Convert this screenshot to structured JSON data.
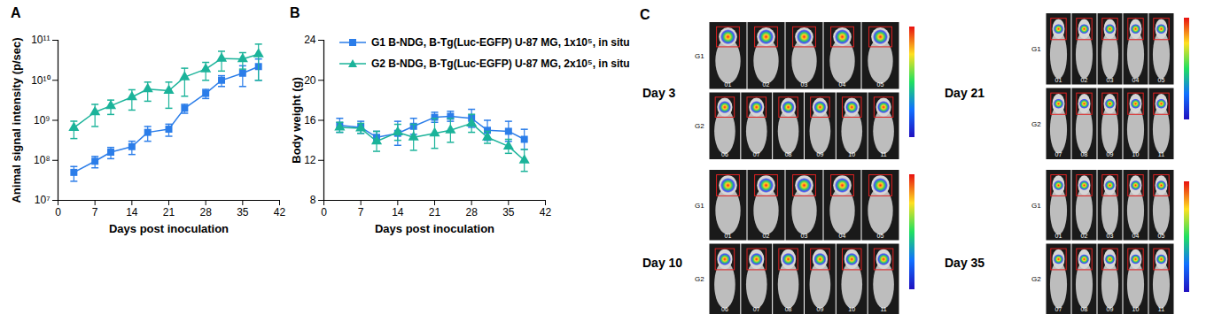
{
  "chart_data": [
    {
      "type": "line",
      "title": "A",
      "x_label": "Days post inoculation",
      "y_label": "Animal signal intensity (p/sec)",
      "log": "y",
      "x": [
        3,
        7,
        10,
        14,
        17,
        21,
        24,
        28,
        31,
        35,
        38
      ],
      "xlim": [
        0,
        42
      ],
      "xticks": [
        0,
        7,
        14,
        21,
        28,
        35,
        42
      ],
      "ylim": [
        10000000.0,
        100000000000.0
      ],
      "yticks": [
        {
          "value": 10000000.0,
          "label": "10⁷"
        },
        {
          "value": 100000000.0,
          "label": "10⁸"
        },
        {
          "value": 1000000000.0,
          "label": "10⁹"
        },
        {
          "value": 10000000000.0,
          "label": "10¹⁰"
        },
        {
          "value": 100000000000.0,
          "label": "10¹¹"
        }
      ],
      "series": [
        {
          "color": "#2b7de9",
          "marker": "square",
          "values": [
            50000000.0,
            95000000.0,
            160000000.0,
            220000000.0,
            500000000.0,
            600000000.0,
            2000000000.0,
            4700000000.0,
            10000000000.0,
            15000000000.0,
            22000000000.0
          ],
          "error": [
            20000000.0,
            30000000.0,
            50000000.0,
            80000000.0,
            200000000.0,
            200000000.0,
            500000000.0,
            1200000000.0,
            3000000000.0,
            8000000000.0,
            12000000000.0
          ]
        },
        {
          "color": "#1bb39a",
          "marker": "triangle",
          "values": [
            650000000.0,
            1600000000.0,
            2300000000.0,
            3800000000.0,
            6000000000.0,
            5500000000.0,
            12000000000.0,
            19000000000.0,
            35000000000.0,
            34000000000.0,
            45000000000.0
          ],
          "error": [
            300000000.0,
            900000000.0,
            900000000.0,
            2000000000.0,
            3000000000.0,
            3500000000.0,
            8000000000.0,
            9000000000.0,
            18000000000.0,
            15000000000.0,
            35000000000.0
          ]
        }
      ]
    },
    {
      "type": "line",
      "title": "B",
      "x_label": "Days post inoculation",
      "y_label": "Body weight (g)",
      "legend": "upper left",
      "x": [
        3,
        7,
        10,
        14,
        17,
        21,
        24,
        28,
        31,
        35,
        38
      ],
      "xlim": [
        0,
        42
      ],
      "xticks": [
        0,
        7,
        14,
        21,
        28,
        35,
        42
      ],
      "ylim": [
        8,
        24
      ],
      "yticks": [
        8,
        12,
        16,
        20,
        24
      ],
      "series": [
        {
          "name": "G1 B-NDG, B-Tg(Luc-EGFP) U-87 MG, 1x10⁵, in situ",
          "color": "#2b7de9",
          "marker": "square",
          "values": [
            15.5,
            15.3,
            14.3,
            14.7,
            15.4,
            16.3,
            16.4,
            16.2,
            15.0,
            14.9,
            14.1
          ],
          "error": [
            0.7,
            0.6,
            0.6,
            1.2,
            0.8,
            0.5,
            0.5,
            0.9,
            1.0,
            1.0,
            1.0
          ]
        },
        {
          "name": "G2 B-NDG, B-Tg(Luc-EGFP) U-87 MG, 2x10⁵, in situ",
          "color": "#1bb39a",
          "marker": "triangle",
          "values": [
            15.3,
            15.2,
            13.9,
            14.8,
            14.3,
            14.7,
            15.0,
            15.7,
            14.3,
            13.4,
            12.0
          ],
          "error": [
            0.5,
            0.5,
            1.0,
            0.8,
            1.3,
            1.5,
            1.2,
            0.9,
            0.6,
            0.7,
            1.1
          ]
        }
      ]
    }
  ],
  "panel_c": {
    "title": "C",
    "images": [
      {
        "label": "Day 3",
        "rows": [
          {
            "group": "G1",
            "mice": [
              "01",
              "02",
              "03",
              "04",
              "05"
            ]
          },
          {
            "group": "G2",
            "mice": [
              "06",
              "07",
              "08",
              "09",
              "10",
              "11"
            ]
          }
        ]
      },
      {
        "label": "Day 21",
        "rows": [
          {
            "group": "G1",
            "mice": [
              "01",
              "02",
              "03",
              "04",
              "05"
            ]
          },
          {
            "group": "G2",
            "mice": [
              "07",
              "08",
              "09",
              "10",
              "11"
            ]
          }
        ]
      },
      {
        "label": "Day 10",
        "rows": [
          {
            "group": "G1",
            "mice": [
              "01",
              "02",
              "03",
              "04",
              "05"
            ]
          },
          {
            "group": "G2",
            "mice": [
              "06",
              "07",
              "08",
              "09",
              "10",
              "11"
            ]
          }
        ]
      },
      {
        "label": "Day 35",
        "rows": [
          {
            "group": "G1",
            "mice": [
              "01",
              "02",
              "03",
              "04",
              "05"
            ]
          },
          {
            "group": "G2",
            "mice": [
              "07",
              "08",
              "09",
              "10",
              "11"
            ]
          }
        ]
      }
    ]
  }
}
